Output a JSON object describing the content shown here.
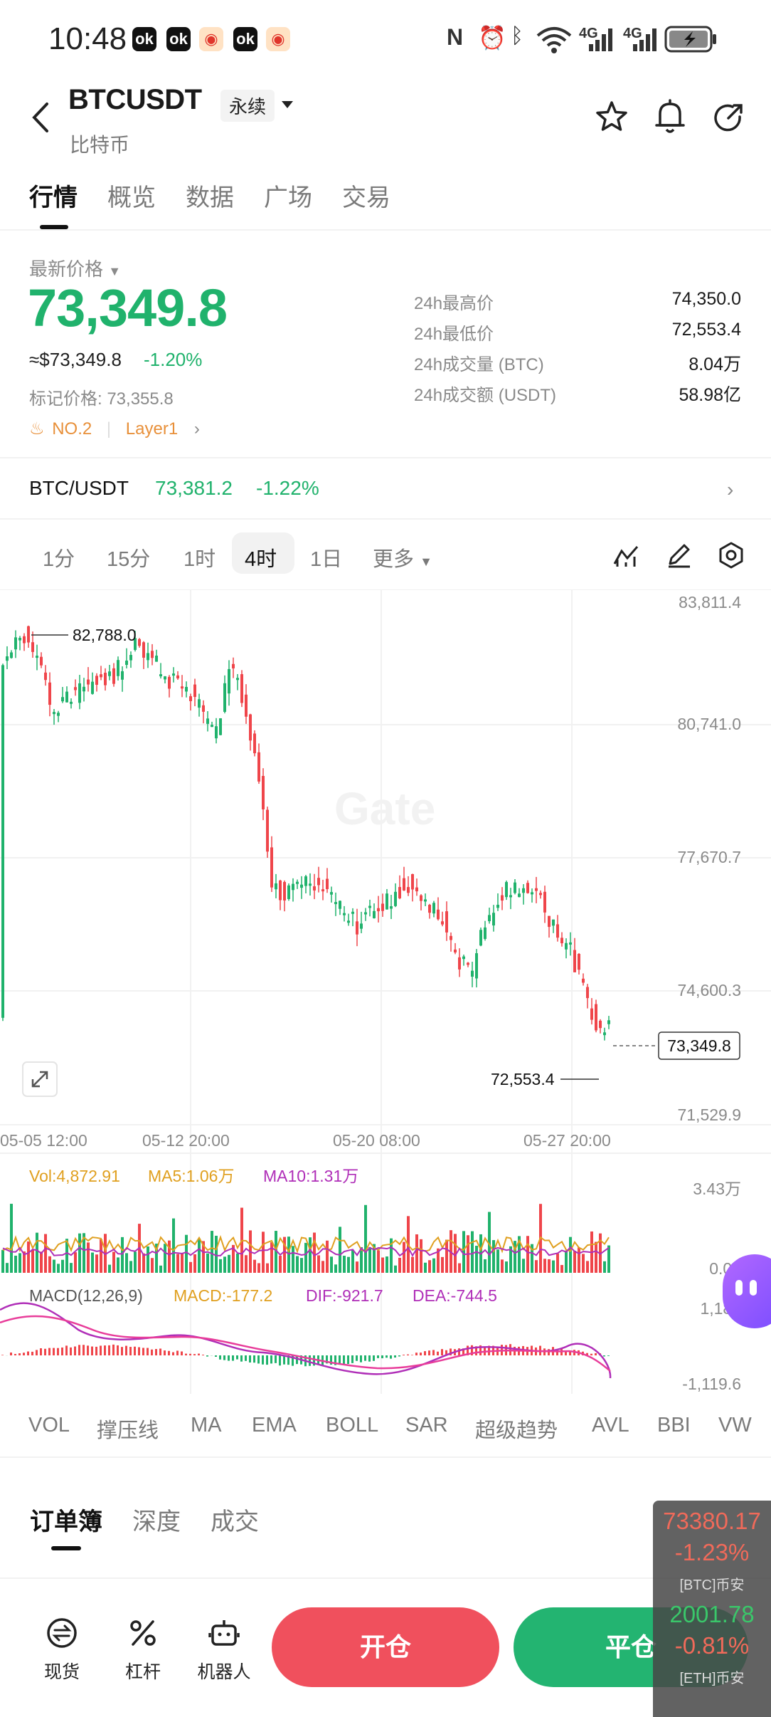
{
  "status_bar": {
    "time": "10:48",
    "network_1": "4G",
    "network_2": "4G"
  },
  "header": {
    "title": "BTCUSDT",
    "subtitle": "比特币",
    "contract_type": "永续"
  },
  "tabs": [
    "行情",
    "概览",
    "数据",
    "广场",
    "交易"
  ],
  "price": {
    "label": "最新价格",
    "last": "73,349.8",
    "usd": "≈$73,349.8",
    "change_pct": "-1.20%",
    "mark_label": "标记价格: 73,355.8",
    "rank": "NO.2",
    "tag": "Layer1"
  },
  "stats": [
    {
      "label": "24h最高价",
      "value": "74,350.0"
    },
    {
      "label": "24h最低价",
      "value": "72,553.4"
    },
    {
      "label": "24h成交量 (BTC)",
      "value": "8.04万"
    },
    {
      "label": "24h成交额 (USDT)",
      "value": "58.98亿"
    }
  ],
  "spot": {
    "name": "BTC/USDT",
    "price": "73,381.2",
    "change_pct": "-1.22%"
  },
  "intervals": [
    "1分",
    "15分",
    "1时",
    "4时",
    "1日",
    "更多"
  ],
  "active_interval": "4时",
  "chart": {
    "y_axis": [
      "83,811.4",
      "80,741.0",
      "77,670.7",
      "74,600.3",
      "71,529.9"
    ],
    "x_axis": [
      "05-05 12:00",
      "05-12 20:00",
      "05-20 08:00",
      "05-27 20:00"
    ],
    "high_marker": "82,788.0",
    "low_marker": "72,553.4",
    "current_marker": "73,349.8",
    "watermark": "Gate",
    "vol_label": "Vol:4,872.91",
    "ma5_label": "MA5:1.06万",
    "ma10_label": "MA10:1.31万",
    "vol_axis_top": "3.43万",
    "vol_axis_bottom": "0.00",
    "macd_label": "MACD(12,26,9)",
    "macd_value": "MACD:-177.2",
    "dif_value": "DIF:-921.7",
    "dea_value": "DEA:-744.5",
    "macd_axis_top": "1,183",
    "macd_axis_bottom": "-1,119.6"
  },
  "indicators": [
    "VOL",
    "撑压线",
    "MA",
    "EMA",
    "BOLL",
    "SAR",
    "超级趋势",
    "AVL",
    "BBI",
    "VW"
  ],
  "orderbook_tabs": [
    "订单簿",
    "深度",
    "成交"
  ],
  "bottom": {
    "tools": [
      "现货",
      "杠杆",
      "机器人"
    ],
    "open_label": "开仓",
    "close_label": "平仓"
  },
  "float_ticker": {
    "btc_price": "73380.17",
    "btc_pct": "-1.23%",
    "btc_label": "[BTC]币安",
    "eth_price": "2001.78",
    "eth_pct": "-0.81%",
    "eth_label": "[ETH]币安"
  },
  "colors": {
    "up": "#20b26c",
    "down": "#ef454a",
    "ma5": "#e0a020",
    "ma10": "#b02fb8"
  }
}
